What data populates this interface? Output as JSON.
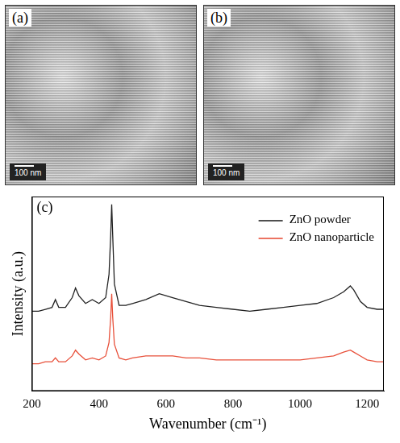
{
  "images": [
    {
      "label": "(a)",
      "scale_bar": "100 nm"
    },
    {
      "label": "(b)",
      "scale_bar": "100 nm"
    }
  ],
  "chart_data": {
    "type": "line",
    "panel": "(c)",
    "x_label": "Wavenumber (cm⁻¹)",
    "y_label": "Intensity (a.u.)",
    "x": [
      200,
      220,
      240,
      260,
      270,
      280,
      300,
      320,
      330,
      340,
      360,
      380,
      400,
      420,
      430,
      435,
      438,
      441,
      446,
      460,
      480,
      500,
      540,
      580,
      620,
      660,
      700,
      750,
      800,
      850,
      900,
      950,
      1000,
      1050,
      1100,
      1130,
      1150,
      1160,
      1180,
      1200,
      1230,
      1250
    ],
    "series": [
      {
        "name": "ZnO powder",
        "color": "#222222",
        "values": [
          41,
          41,
          42,
          43,
          47,
          43,
          43,
          48,
          53,
          49,
          45,
          47,
          45,
          48,
          60,
          80,
          96,
          80,
          55,
          44,
          44,
          45,
          47,
          50,
          48,
          46,
          44,
          43,
          42,
          41,
          42,
          43,
          44,
          45,
          48,
          51,
          54,
          52,
          46,
          43,
          42,
          42
        ]
      },
      {
        "name": "ZnO nanoparticle",
        "color": "#e8503a",
        "values": [
          14,
          14,
          15,
          15,
          17,
          15,
          15,
          18,
          21,
          19,
          16,
          17,
          16,
          18,
          25,
          38,
          50,
          38,
          24,
          17,
          16,
          17,
          18,
          18,
          18,
          17,
          17,
          16,
          16,
          16,
          16,
          16,
          16,
          17,
          18,
          20,
          21,
          20,
          18,
          16,
          15,
          15
        ]
      }
    ],
    "xlim": [
      200,
      1250
    ],
    "xticks": [
      200,
      400,
      600,
      800,
      1000,
      1200
    ],
    "ylim": [
      0,
      100
    ],
    "tick_labels": "x",
    "grid": false,
    "legend": "upper right"
  }
}
